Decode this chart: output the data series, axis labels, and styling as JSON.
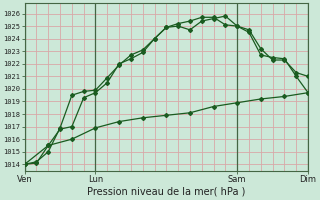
{
  "background_color": "#cce8d8",
  "plot_bg_color": "#cce8d8",
  "grid_color": "#d8a8a8",
  "line_color": "#1a5c20",
  "title": "Pression niveau de la mer( hPa )",
  "ylim": [
    1013.5,
    1026.8
  ],
  "yticks": [
    1014,
    1015,
    1016,
    1017,
    1018,
    1019,
    1020,
    1021,
    1022,
    1023,
    1024,
    1025,
    1026
  ],
  "xtick_labels": [
    "Ven",
    "Lun",
    "Sam",
    "Dim"
  ],
  "xtick_positions": [
    0,
    24,
    72,
    96
  ],
  "vline_positions": [
    0,
    24,
    72,
    96
  ],
  "xlim": [
    0,
    96
  ],
  "line1_x": [
    0,
    4,
    8,
    12,
    16,
    20,
    24,
    28,
    32,
    36,
    40,
    44,
    48,
    52,
    56,
    60,
    64,
    68,
    72,
    76,
    80,
    84,
    88,
    92,
    96
  ],
  "line1_y": [
    1014.0,
    1014.1,
    1015.5,
    1016.8,
    1017.0,
    1019.3,
    1019.7,
    1020.5,
    1022.0,
    1022.4,
    1022.9,
    1024.0,
    1024.9,
    1025.0,
    1024.7,
    1025.4,
    1025.6,
    1025.8,
    1025.0,
    1024.5,
    1022.7,
    1022.5,
    1022.4,
    1021.0,
    1019.7
  ],
  "line2_x": [
    0,
    4,
    8,
    12,
    16,
    20,
    24,
    28,
    32,
    36,
    40,
    44,
    48,
    52,
    56,
    60,
    64,
    68,
    72,
    76,
    80,
    84,
    88,
    92,
    96
  ],
  "line2_y": [
    1014.0,
    1014.2,
    1015.0,
    1016.9,
    1019.5,
    1019.8,
    1019.9,
    1020.9,
    1021.9,
    1022.7,
    1023.1,
    1024.0,
    1024.9,
    1025.2,
    1025.4,
    1025.7,
    1025.7,
    1025.1,
    1025.0,
    1024.7,
    1023.2,
    1022.3,
    1022.3,
    1021.3,
    1021.0
  ],
  "line3_x": [
    0,
    8,
    16,
    24,
    32,
    40,
    48,
    56,
    64,
    72,
    80,
    88,
    96
  ],
  "line3_y": [
    1014.0,
    1015.5,
    1016.0,
    1016.9,
    1017.4,
    1017.7,
    1017.9,
    1018.1,
    1018.6,
    1018.9,
    1019.2,
    1019.4,
    1019.7
  ],
  "ylabel_fontsize": 5.0,
  "xlabel_fontsize": 7.0,
  "tick_fontsize": 6.0
}
